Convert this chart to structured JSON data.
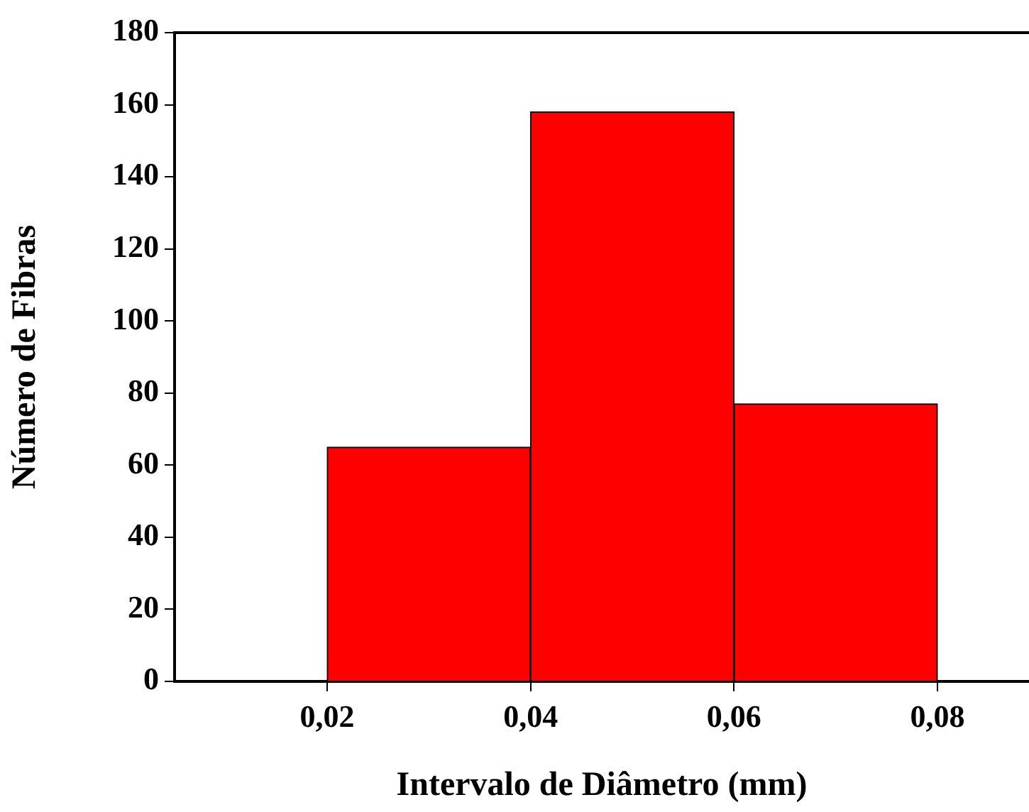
{
  "chart_data": {
    "type": "histogram",
    "xlabel": "Intervalo de Diâmetro (mm)",
    "ylabel": "Número de Fibras",
    "bins": [
      0.02,
      0.04,
      0.06,
      0.08
    ],
    "values": [
      65,
      158,
      77
    ],
    "color": "#ff0000",
    "xlim": [
      0.005,
      0.089
    ],
    "xticks": [
      {
        "value": 0.02,
        "label": "0,02"
      },
      {
        "value": 0.04,
        "label": "0,04"
      },
      {
        "value": 0.06,
        "label": "0,06"
      },
      {
        "value": 0.08,
        "label": "0,08"
      }
    ],
    "ylim": [
      0,
      180
    ],
    "yticks": [
      0,
      20,
      40,
      60,
      80,
      100,
      120,
      140,
      160,
      180
    ],
    "grid": false,
    "legend": false
  }
}
